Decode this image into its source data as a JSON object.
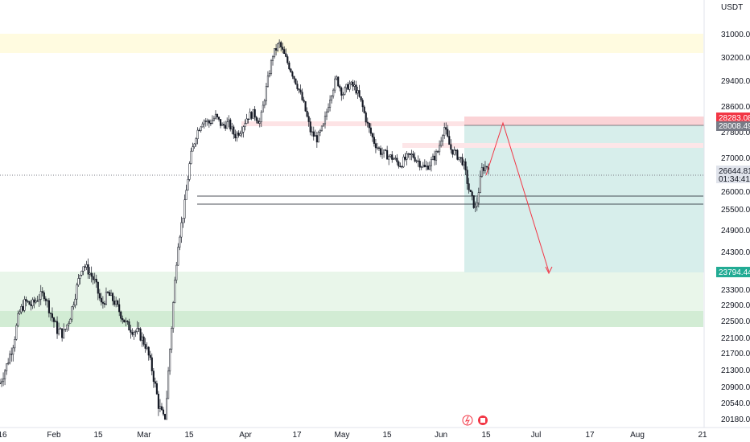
{
  "chart_data": {
    "type": "candlestick",
    "currency": "USDT",
    "x_ticks": [
      "16",
      "Feb",
      "15",
      "Mar",
      "15",
      "Apr",
      "17",
      "May",
      "15",
      "Jun",
      "15",
      "Jul",
      "17",
      "Aug",
      "21"
    ],
    "y_ticks": [
      "31000.00",
      "30200.00",
      "29400.00",
      "28600.00",
      "27800.00",
      "27000.00",
      "26000.00",
      "25500.00",
      "24900.00",
      "24300.00",
      "23300.00",
      "22900.00",
      "22500.00",
      "22100.00",
      "21700.00",
      "21300.00",
      "20900.00",
      "20540.00",
      "20180.00"
    ],
    "price_path": [
      21000,
      21400,
      21900,
      22700,
      23000,
      22900,
      23100,
      23200,
      22700,
      22300,
      22200,
      22600,
      23300,
      24000,
      23800,
      23500,
      22900,
      23200,
      23000,
      22700,
      22400,
      22300,
      22200,
      21900,
      21300,
      20500,
      20100,
      22300,
      24500,
      25500,
      27000,
      27800,
      28200,
      28100,
      28300,
      28000,
      28100,
      27700,
      27900,
      28300,
      28400,
      28100,
      29200,
      30300,
      30700,
      30200,
      29700,
      29200,
      28600,
      27800,
      27600,
      28000,
      28900,
      29500,
      29000,
      29300,
      29200,
      28700,
      28000,
      27500,
      27200,
      27100,
      27000,
      26800,
      27000,
      27100,
      26900,
      26700,
      26900,
      27200,
      28000,
      27300,
      27100,
      26900,
      26000,
      25500,
      26700,
      26800
    ],
    "levels": {
      "last_price": "26644.81",
      "countdown": "01:34:41",
      "stop": "28283.08",
      "entry": "28008.49",
      "target": "23794.44"
    },
    "zones": [
      {
        "type": "resistance",
        "color": "#fff9d9",
        "from": 30500,
        "to": 31000
      },
      {
        "type": "support",
        "color": "#e8f5e9",
        "from": 22600,
        "to": 23800
      },
      {
        "type": "support-strong",
        "color": "#d3ecd5",
        "from": 22350,
        "to": 22600
      }
    ],
    "colors": {
      "candles": "#131722",
      "stop": "#f23645",
      "target": "#22ab94",
      "arrow": "#f23645",
      "target_zone": "#d7eeeb"
    }
  },
  "icons": [
    "lightning-icon",
    "flag-icon"
  ]
}
